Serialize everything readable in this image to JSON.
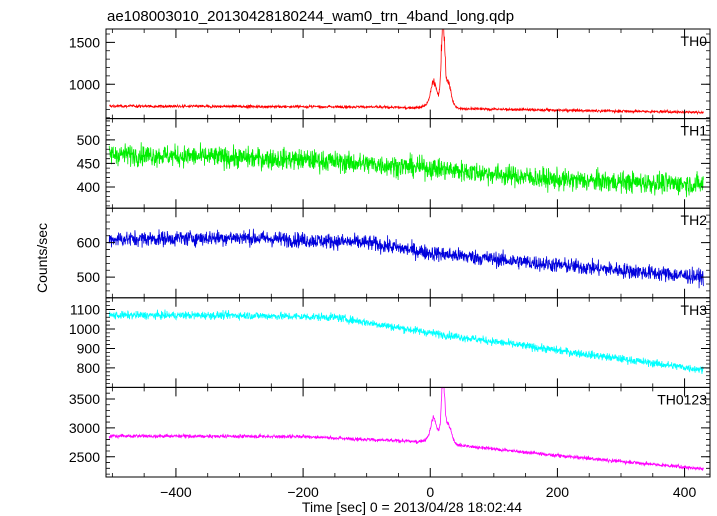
{
  "chart_data": {
    "type": "line",
    "title": "ae108003010_20130428180244_wam0_trn_4band_long.qdp",
    "xlabel": "Time [sec] 0 = 2013/04/28 18:02:44",
    "ylabel": "Counts/sec",
    "xlim": [
      -510,
      440
    ],
    "xticks": [
      -400,
      -200,
      0,
      200,
      400
    ],
    "panels": [
      {
        "name": "TH0",
        "color": "#ff0000",
        "ylim": [
          590,
          1660
        ],
        "yticks": [
          1000,
          1500
        ],
        "baseline": [
          [
            -510,
            740
          ],
          [
            -100,
            730
          ],
          [
            0,
            715
          ],
          [
            200,
            690
          ],
          [
            430,
            665
          ]
        ],
        "noise": 16,
        "peaks": [
          {
            "x": 5,
            "amp": 220,
            "width": 4
          },
          {
            "x": 20,
            "amp": 900,
            "width": 2.5
          },
          {
            "x": 28,
            "amp": 260,
            "width": 5
          },
          {
            "x": 12,
            "amp": 120,
            "width": 12
          }
        ]
      },
      {
        "name": "TH1",
        "color": "#00ee00",
        "ylim": [
          355,
          545
        ],
        "yticks": [
          400,
          450,
          500
        ],
        "baseline": [
          [
            -510,
            470
          ],
          [
            -200,
            458
          ],
          [
            0,
            440
          ],
          [
            200,
            415
          ],
          [
            430,
            405
          ]
        ],
        "noise": 22,
        "peaks": []
      },
      {
        "name": "TH2",
        "color": "#0000dd",
        "ylim": [
          440,
          700
        ],
        "yticks": [
          500,
          600
        ],
        "baseline": [
          [
            -510,
            610
          ],
          [
            -300,
            615
          ],
          [
            -100,
            600
          ],
          [
            0,
            570
          ],
          [
            200,
            535
          ],
          [
            430,
            500
          ]
        ],
        "noise": 22,
        "peaks": []
      },
      {
        "name": "TH3",
        "color": "#00ffff",
        "ylim": [
          700,
          1160
        ],
        "yticks": [
          800,
          900,
          1000,
          1100
        ],
        "baseline": [
          [
            -510,
            1070
          ],
          [
            -300,
            1070
          ],
          [
            -150,
            1060
          ],
          [
            0,
            980
          ],
          [
            200,
            890
          ],
          [
            430,
            790
          ]
        ],
        "noise": 20,
        "peaks": []
      },
      {
        "name": "TH0123",
        "color": "#ff00ff",
        "ylim": [
          2150,
          3700
        ],
        "yticks": [
          2500,
          3000,
          3500
        ],
        "baseline": [
          [
            -510,
            2860
          ],
          [
            -200,
            2850
          ],
          [
            0,
            2750
          ],
          [
            200,
            2520
          ],
          [
            430,
            2290
          ]
        ],
        "noise": 30,
        "peaks": [
          {
            "x": 5,
            "amp": 300,
            "width": 4
          },
          {
            "x": 20,
            "amp": 900,
            "width": 2.5
          },
          {
            "x": 28,
            "amp": 300,
            "width": 5
          },
          {
            "x": 12,
            "amp": 150,
            "width": 12
          }
        ]
      }
    ],
    "grid": false,
    "legend": "panel labels top-right"
  }
}
